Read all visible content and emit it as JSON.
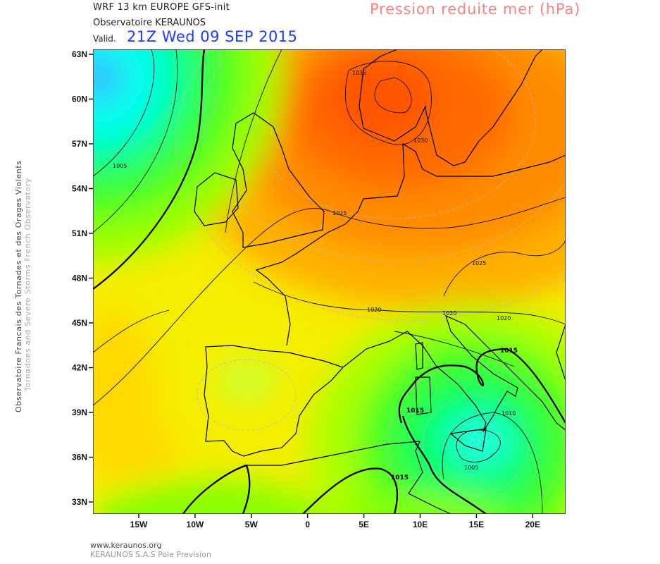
{
  "header": {
    "model_line": "WRF 13 km EUROPE   GFS-init",
    "org_line": "Observatoire KERAUNOS",
    "valid_label": "Valid.",
    "valid_time": "21Z Wed 09 SEP 2015",
    "field_title": "Pression reduite mer (hPa)"
  },
  "side": {
    "line1": "Observatoire Francais des Tornades et des Orages Violents",
    "line2": "Tornadoes and Severe Storms French Observatory"
  },
  "footer": {
    "url": "www.keraunos.org",
    "company": "KERAUNOS S.A.S Pole Prevision"
  },
  "axes": {
    "lat_labels": [
      "63N",
      "60N",
      "57N",
      "54N",
      "51N",
      "48N",
      "45N",
      "42N",
      "39N",
      "36N",
      "33N"
    ],
    "lon_labels": [
      "15W",
      "10W",
      "5W",
      "0",
      "5E",
      "10E",
      "15E",
      "20E"
    ]
  },
  "isobar_labels": {
    "nw_1005": "1005",
    "norway_1035": "1035",
    "denmark_1030": "1030",
    "benelux_1025": "1025",
    "czech_1025": "1025",
    "alps_1020": "1020",
    "italy_1020": "1020",
    "balkans_1020": "1020",
    "adriatic_1015": "1015",
    "sardinia_1015": "1015",
    "africa_1015": "1015",
    "ionian_1010": "1010",
    "sicily_1005": "1005"
  },
  "colors": {
    "high_core": "#ff5500",
    "high": "#ff8800",
    "mid": "#ffee00",
    "low_green": "#22ff22",
    "low_core": "#00ffee",
    "valid_time": "#1a3cff",
    "title": "#ff8080"
  }
}
